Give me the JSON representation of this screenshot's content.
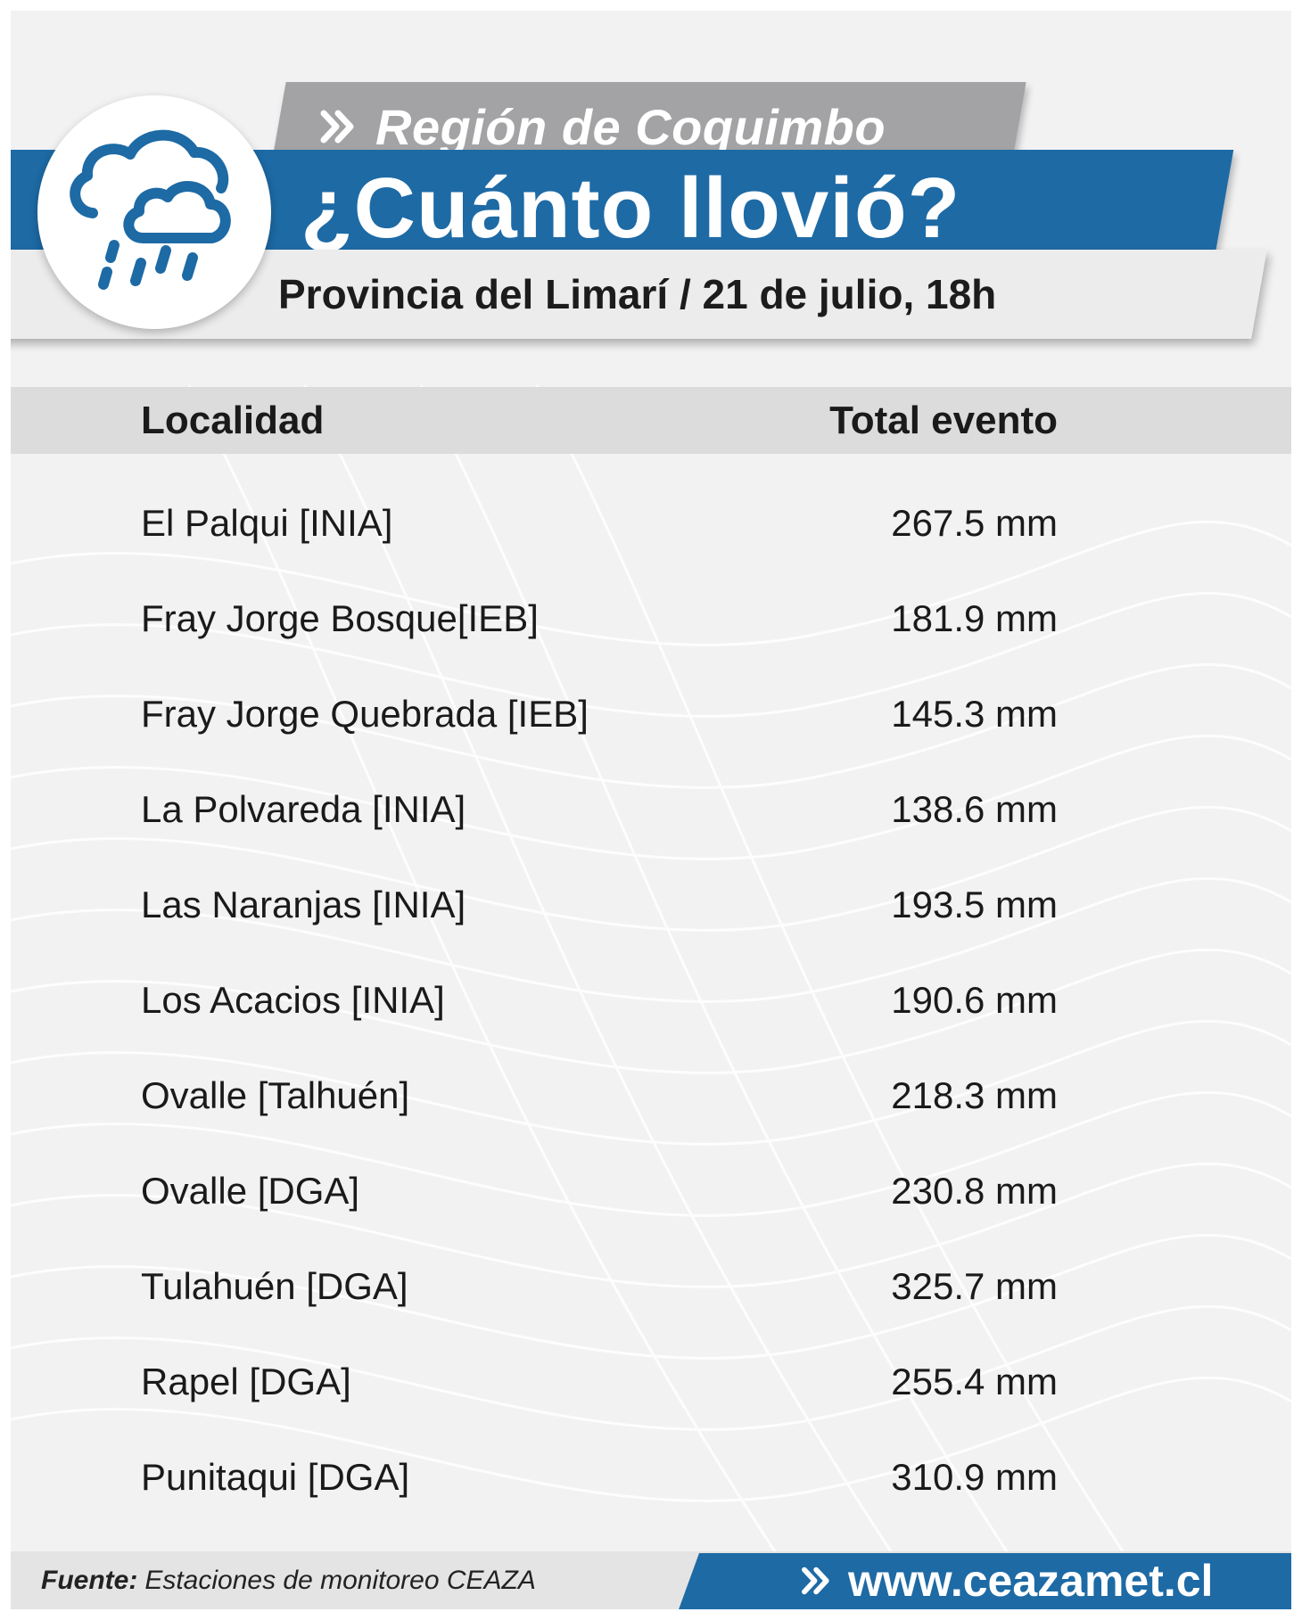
{
  "header": {
    "region": "Región de Coquimbo",
    "title": "¿Cuánto llovió?",
    "subtitle": "Provincia del Limarí / 21 de julio, 18h",
    "icon": "rain-cloud-icon"
  },
  "table": {
    "col_location": "Localidad",
    "col_total": "Total evento",
    "rows": [
      {
        "location": "El Palqui [INIA]",
        "total": "267.5 mm"
      },
      {
        "location": "Fray Jorge Bosque[IEB]",
        "total": "181.9 mm"
      },
      {
        "location": "Fray Jorge Quebrada [IEB]",
        "total": "145.3 mm"
      },
      {
        "location": "La Polvareda [INIA]",
        "total": "138.6 mm"
      },
      {
        "location": "Las Naranjas [INIA]",
        "total": "193.5 mm"
      },
      {
        "location": "Los Acacios [INIA]",
        "total": "190.6 mm"
      },
      {
        "location": "Ovalle [Talhuén]",
        "total": "218.3 mm"
      },
      {
        "location": "Ovalle [DGA]",
        "total": "230.8 mm"
      },
      {
        "location": "Tulahuén [DGA]",
        "total": "325.7 mm"
      },
      {
        "location": "Rapel [DGA]",
        "total": "255.4 mm"
      },
      {
        "location": "Punitaqui [DGA]",
        "total": "310.9 mm"
      }
    ]
  },
  "footer": {
    "source_label": "Fuente:",
    "source_text": "Estaciones de monitoreo CEAZA",
    "url": "www.ceazamet.cl"
  },
  "colors": {
    "brand_blue": "#1d6aa5",
    "region_gray": "#a3a3a5",
    "background": "#f2f2f3"
  }
}
